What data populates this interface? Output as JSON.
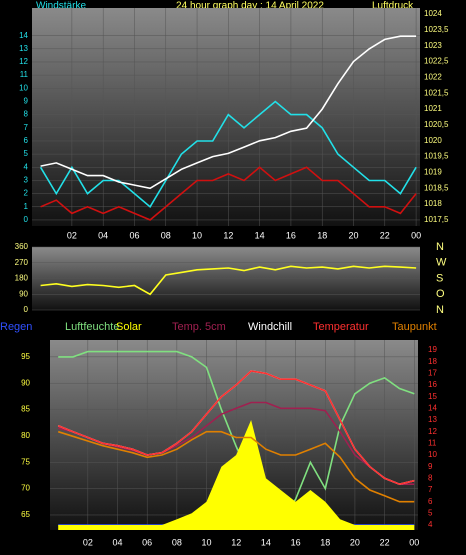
{
  "chart_data": [
    {
      "type": "line",
      "title": "24 hour graph day : 14 April 2022",
      "ylabel": "Windstärke",
      "y2label": "Luftdruck",
      "x": [
        0,
        1,
        2,
        3,
        4,
        5,
        6,
        7,
        8,
        9,
        10,
        11,
        12,
        13,
        14,
        15,
        16,
        17,
        18,
        19,
        20,
        21,
        22,
        23,
        24
      ],
      "xlim": [
        -0.55,
        24.25
      ],
      "xticks": [
        {
          "value": 2,
          "label": "02"
        },
        {
          "value": 4,
          "label": "04"
        },
        {
          "value": 6,
          "label": "06"
        },
        {
          "value": 8,
          "label": "08"
        },
        10,
        12,
        14,
        16,
        18,
        20,
        22,
        {
          "value": 24,
          "label": "00"
        }
      ],
      "ylim": [
        -0.46,
        16.1
      ],
      "yticks": [
        0,
        1,
        2,
        3,
        4,
        5,
        6,
        7,
        8,
        9,
        10,
        11,
        12,
        13,
        14
      ],
      "y2lim": [
        1017.31,
        1024.19
      ],
      "y2ticks": [
        {
          "value": 1017.5,
          "label": "1017,5"
        },
        1018,
        {
          "value": 1018.5,
          "label": "1018,5"
        },
        1019,
        {
          "value": 1019.5,
          "label": "1019,5"
        },
        1020,
        {
          "value": 1020.5,
          "label": "1020,5"
        },
        1021,
        {
          "value": 1021.5,
          "label": "1021,5"
        },
        1022,
        {
          "value": 1022.5,
          "label": "1022,5"
        },
        1023,
        {
          "value": 1023.5,
          "label": "1023,5"
        },
        1024
      ],
      "grid": true,
      "series": [
        {
          "name": "Windstärke",
          "color": "#22e0e8",
          "values": [
            4,
            2,
            4,
            2,
            3,
            3,
            2,
            1,
            3,
            5,
            6,
            6,
            8,
            7,
            8,
            9,
            8,
            8,
            7,
            5,
            4,
            3,
            3,
            2,
            4
          ]
        },
        {
          "color": "#d01010",
          "values": [
            1,
            1.5,
            0.5,
            1,
            0.5,
            1,
            0.5,
            0,
            1,
            2,
            3,
            3,
            3.5,
            3,
            4,
            3,
            3.5,
            4,
            3,
            3,
            2,
            1,
            1,
            0.5,
            2
          ]
        },
        {
          "name": "Luftdruck",
          "color": "#ffffff",
          "axis": "y2",
          "values": [
            1019.2,
            1019.3,
            1019.1,
            1018.9,
            1018.9,
            1018.7,
            1018.6,
            1018.5,
            1018.8,
            1019.1,
            1019.3,
            1019.5,
            1019.6,
            1019.8,
            1020.0,
            1020.1,
            1020.3,
            1020.4,
            1021.0,
            1021.8,
            1022.5,
            1022.9,
            1023.2,
            1023.3,
            1023.3
          ]
        }
      ]
    },
    {
      "type": "line",
      "x": [
        0,
        1,
        2,
        3,
        4,
        5,
        6,
        7,
        8,
        9,
        10,
        11,
        12,
        13,
        14,
        15,
        16,
        17,
        18,
        19,
        20,
        21,
        22,
        23,
        24
      ],
      "xlim": [
        -0.55,
        24.25
      ],
      "ylim": [
        0,
        360
      ],
      "yticks": [
        0,
        90,
        180,
        270,
        360
      ],
      "y2lim": [
        0,
        360
      ],
      "y2ticks": [
        {
          "value": 0,
          "label": "N"
        },
        {
          "value": 90,
          "label": "O"
        },
        {
          "value": 180,
          "label": "S"
        },
        {
          "value": 270,
          "label": "W"
        },
        {
          "value": 360,
          "label": "N"
        }
      ],
      "grid": true,
      "series": [
        {
          "color": "#ffff20",
          "values": [
            140,
            150,
            135,
            145,
            140,
            130,
            140,
            90,
            200,
            215,
            230,
            235,
            240,
            225,
            245,
            230,
            250,
            240,
            245,
            235,
            250,
            240,
            250,
            245,
            240
          ]
        }
      ]
    },
    {
      "type": "line",
      "x": [
        0,
        1,
        2,
        3,
        4,
        5,
        6,
        7,
        8,
        9,
        10,
        11,
        12,
        13,
        14,
        15,
        16,
        17,
        18,
        19,
        20,
        21,
        22,
        23,
        24
      ],
      "xlim": [
        -0.55,
        24.25
      ],
      "xticks": [
        {
          "value": 2,
          "label": "02"
        },
        {
          "value": 4,
          "label": "04"
        },
        {
          "value": 6,
          "label": "06"
        },
        {
          "value": 8,
          "label": "08"
        },
        10,
        12,
        14,
        16,
        18,
        20,
        22,
        {
          "value": 24,
          "label": "00"
        }
      ],
      "ylim": [
        62.15,
        98.2
      ],
      "yticks": [
        65,
        70,
        75,
        80,
        85,
        90,
        95
      ],
      "y2lim": [
        3.57,
        19.86
      ],
      "y2ticks": [
        4,
        5,
        6,
        7,
        8,
        9,
        10,
        11,
        12,
        13,
        14,
        15,
        16,
        17,
        18,
        19
      ],
      "grid": true,
      "series": [
        {
          "name": "Regen",
          "color": "#3050ff",
          "axis": "y2",
          "values": [
            4,
            4,
            4,
            4,
            4,
            4,
            4,
            4,
            4,
            4,
            4,
            4,
            4,
            4,
            4,
            4,
            4,
            4,
            4,
            4,
            4,
            4,
            4,
            4,
            4
          ]
        },
        {
          "name": "Luftfeuchte",
          "color": "#80e080",
          "values": [
            95,
            95,
            96,
            96,
            96,
            96,
            96,
            96,
            96,
            95,
            93,
            85,
            78,
            72,
            66,
            64,
            68,
            75,
            70,
            82,
            88,
            90,
            91,
            89,
            88
          ]
        },
        {
          "name": "Solar",
          "color": "#ffff00",
          "axis": "y2",
          "fill": true,
          "values": [
            4,
            4,
            4,
            4,
            4,
            4,
            4,
            4,
            4.5,
            5,
            6,
            9,
            10,
            13,
            8,
            7,
            6,
            7,
            6,
            4.5,
            4,
            4,
            4,
            4,
            4
          ]
        },
        {
          "name": "Temp. 5cm",
          "color": "#a02050",
          "axis": "y2",
          "values": [
            12.3,
            12,
            11.5,
            11,
            10.7,
            10.4,
            10,
            10.2,
            10.8,
            11.5,
            12.5,
            13.5,
            14,
            14.5,
            14.5,
            14,
            14,
            14,
            13.8,
            12,
            10,
            9,
            8,
            7.5,
            7.5
          ]
        },
        {
          "name": "Windchill",
          "color": "#ffffff",
          "axis": "y2",
          "values": [
            12.5,
            12,
            11.5,
            11,
            10.8,
            10.5,
            10,
            10.2,
            11,
            12,
            13.5,
            15,
            16,
            17.2,
            17,
            16.5,
            16.5,
            16,
            15.5,
            13,
            10.5,
            9,
            8,
            7.5,
            7.8
          ]
        },
        {
          "name": "Temperatur",
          "color": "#ff3030",
          "axis": "y2",
          "values": [
            12.5,
            12,
            11.5,
            11,
            10.8,
            10.5,
            10,
            10.2,
            11,
            12,
            13.5,
            15,
            16,
            17.2,
            17,
            16.5,
            16.5,
            16,
            15.5,
            13,
            10.5,
            9,
            8,
            7.5,
            7.8
          ]
        },
        {
          "name": "Taupunkt",
          "color": "#e08000",
          "axis": "y2",
          "values": [
            12,
            11.6,
            11.2,
            10.8,
            10.5,
            10.2,
            9.8,
            10,
            10.5,
            11.3,
            12,
            12,
            11.5,
            11.5,
            10.5,
            10,
            10,
            10.5,
            11,
            9.8,
            8,
            7,
            6.5,
            6,
            6
          ]
        }
      ]
    }
  ]
}
